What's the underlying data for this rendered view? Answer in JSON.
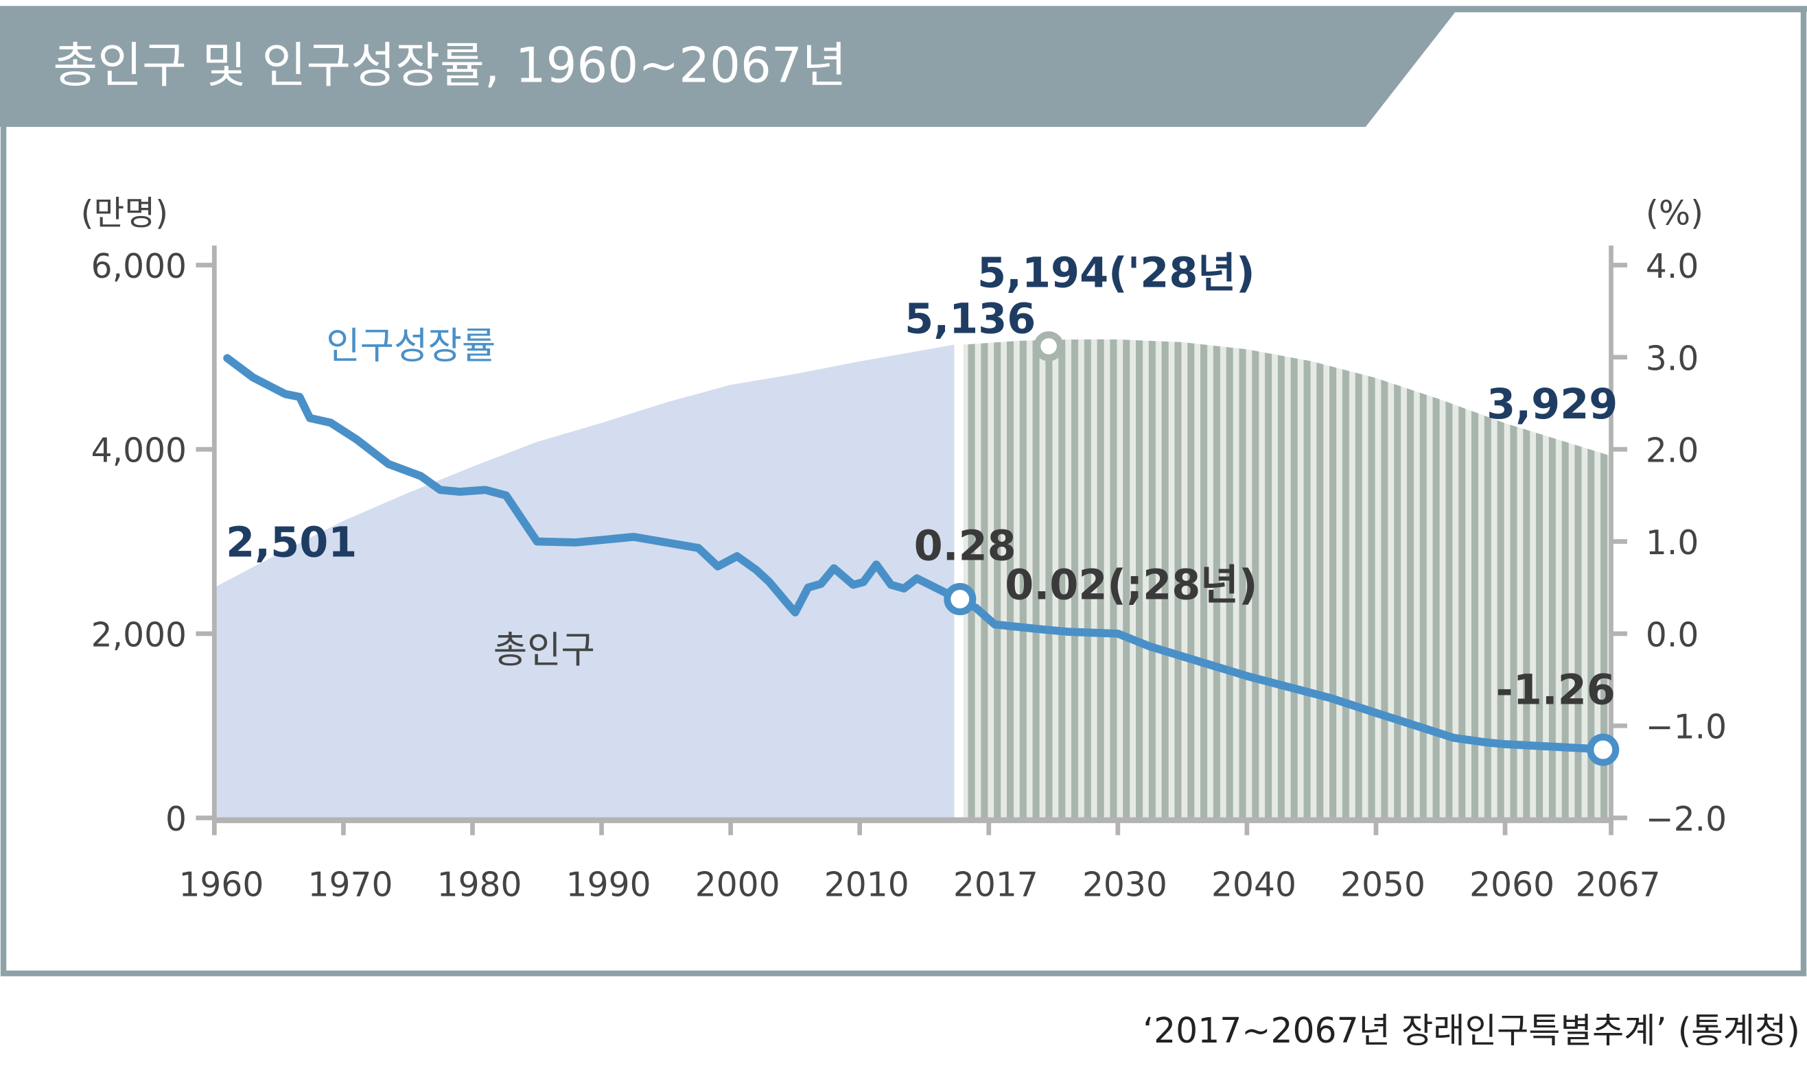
{
  "header": {
    "title": "총인구 및 인구성장률, 1960~2067년"
  },
  "source": "‘2017~2067년 장래인구특별추계’ (통계청)",
  "colors": {
    "header": "#8fa1a8",
    "line": "#4a90c8",
    "area": "#d3ddef",
    "stripe_dark": "#a8b5ad",
    "stripe_light": "#e6eae5",
    "navy": "#1f3d63"
  },
  "chart_data": {
    "type": "area+line",
    "title": "총인구 및 인구성장률, 1960~2067년",
    "left_axis": {
      "label": "(만명)",
      "ylim": [
        0,
        6000
      ],
      "ticks": [
        "6,000",
        "4,000",
        "2,000",
        "0"
      ],
      "tick_values": [
        6000,
        4000,
        2000,
        0
      ]
    },
    "right_axis": {
      "label": "(%)",
      "ylim": [
        -2.0,
        4.0
      ],
      "ticks": [
        "4.0",
        "3.0",
        "2.0",
        "1.0",
        "0.0",
        "−1.0",
        "−2.0"
      ],
      "tick_values": [
        4,
        3,
        2,
        1,
        0,
        -1,
        -2
      ]
    },
    "x_ticks": [
      "1960",
      "1970",
      "1980",
      "1990",
      "2000",
      "2010",
      "2017",
      "2030",
      "2040",
      "2050",
      "2060",
      "2067"
    ],
    "x_tick_values": [
      1960,
      1970,
      1980,
      1990,
      2000,
      2010,
      2017,
      2030,
      2040,
      2050,
      2060,
      2067
    ],
    "series": [
      {
        "name": "총인구",
        "axis": "left",
        "type": "area",
        "historical": {
          "x": [
            1960,
            1965,
            1970,
            1975,
            1980,
            1985,
            1990,
            1995,
            2000,
            2005,
            2010,
            2017
          ],
          "y": [
            2501,
            2870,
            3224,
            3528,
            3812,
            4081,
            4287,
            4509,
            4701,
            4818,
            4955,
            5136
          ]
        },
        "projected": {
          "x": [
            2017,
            2020,
            2025,
            2028,
            2030,
            2035,
            2040,
            2045,
            2050,
            2055,
            2060,
            2067
          ],
          "y": [
            5136,
            5178,
            5191,
            5194,
            5193,
            5163,
            5086,
            4957,
            4774,
            4541,
            4284,
            3929
          ]
        }
      },
      {
        "name": "인구성장률",
        "axis": "right",
        "type": "line",
        "x": [
          1961,
          1963,
          1965.5,
          1966.6,
          1967.4,
          1969,
          1971,
          1973.5,
          1976,
          1977.5,
          1979,
          1981,
          1982.6,
          1985,
          1988,
          1992.5,
          1997.5,
          1999,
          2000.5,
          2002,
          2003,
          2004.5,
          2005,
          2006,
          2007,
          2008,
          2009.5,
          2010.2,
          2010.9,
          2011.7,
          2012.4,
          2013.1,
          2016.3,
          2017.6,
          2022,
          2025,
          2030,
          2032.5,
          2040,
          2046.5,
          2050,
          2056,
          2058.5,
          2060,
          2067
        ],
        "y": [
          2.99,
          2.78,
          2.6,
          2.57,
          2.34,
          2.29,
          2.11,
          1.84,
          1.71,
          1.56,
          1.54,
          1.56,
          1.5,
          1.0,
          0.99,
          1.05,
          0.93,
          0.73,
          0.84,
          0.69,
          0.56,
          0.31,
          0.23,
          0.5,
          0.54,
          0.71,
          0.53,
          0.56,
          0.75,
          0.53,
          0.49,
          0.6,
          0.28,
          0.1,
          0.05,
          0.02,
          0.0,
          -0.14,
          -0.46,
          -0.7,
          -0.86,
          -1.13,
          -1.18,
          -1.2,
          -1.26
        ]
      }
    ],
    "annotations": [
      {
        "text": "2,501",
        "series": "총인구",
        "x": 1960,
        "value": 2501
      },
      {
        "text": "5,136",
        "series": "총인구",
        "x": 2017,
        "value": 5136
      },
      {
        "text": "5,194('28년)",
        "series": "총인구",
        "x": 2028,
        "value": 5194
      },
      {
        "text": "3,929",
        "series": "총인구",
        "x": 2067,
        "value": 3929
      },
      {
        "text": "0.28",
        "series": "인구성장률",
        "x": 2017,
        "value": 0.28
      },
      {
        "text": "0.02(;28년)",
        "series": "인구성장률",
        "x": 2028,
        "value": 0.02
      },
      {
        "text": "-1.26",
        "series": "인구성장률",
        "x": 2067,
        "value": -1.26
      }
    ],
    "series_labels": {
      "rate": "인구성장률",
      "population": "총인구"
    }
  }
}
